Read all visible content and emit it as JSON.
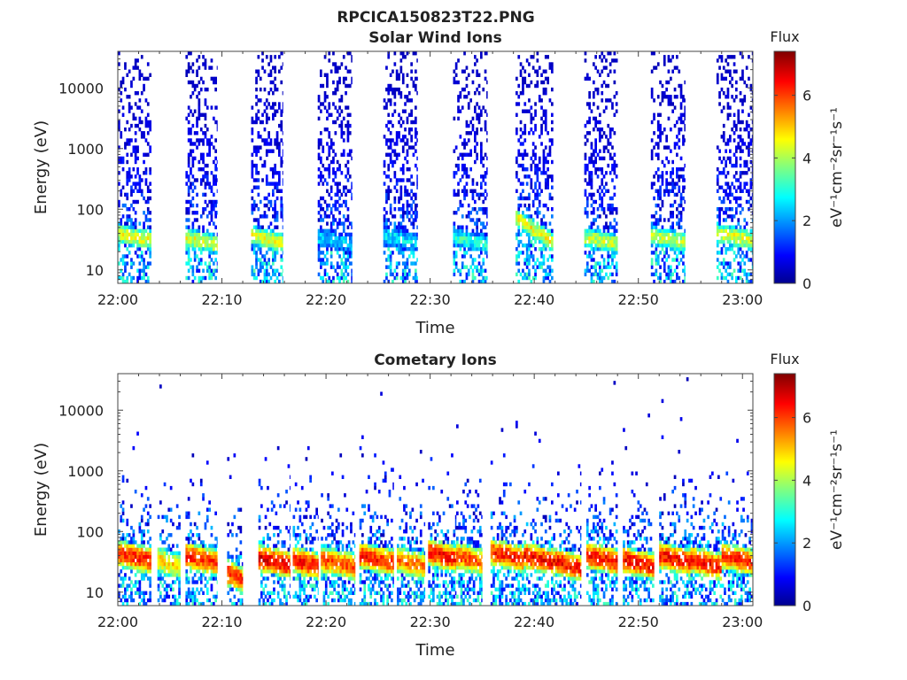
{
  "figure_title": "RPCICA150823T22.PNG",
  "chart_data": [
    {
      "type": "heatmap",
      "title": "Solar Wind Ions",
      "xlabel": "Time",
      "ylabel": "Energy (eV)",
      "x_ticks": [
        "22:00",
        "22:10",
        "22:20",
        "22:30",
        "22:40",
        "22:50",
        "23:00"
      ],
      "xlim_minutes": [
        0,
        61
      ],
      "y_scale": "log",
      "ylim": [
        6,
        40000
      ],
      "y_ticks": [
        10,
        100,
        1000,
        10000
      ],
      "y_tick_labels": [
        "10",
        "100",
        "1000",
        "10000"
      ],
      "colorbar": {
        "title": "Flux",
        "label": "eV⁻¹cm⁻²sr⁻¹s⁻¹",
        "range": [
          0,
          7.4
        ],
        "ticks": [
          0,
          2,
          4,
          6
        ],
        "colormap": "jet"
      },
      "bursts_minutes": [
        {
          "start": 0.0,
          "end": 3.2,
          "peak_energy_eV": 35,
          "peak_flux": 5.0
        },
        {
          "start": 6.5,
          "end": 9.5,
          "peak_energy_eV": 30,
          "peak_flux": 5.0
        },
        {
          "start": 12.8,
          "end": 15.8,
          "peak_energy_eV": 32,
          "peak_flux": 5.0
        },
        {
          "start": 19.2,
          "end": 22.5,
          "peak_energy_eV": 30,
          "peak_flux": 3.0
        },
        {
          "start": 25.5,
          "end": 28.8,
          "peak_energy_eV": 32,
          "peak_flux": 3.2
        },
        {
          "start": 32.2,
          "end": 35.5,
          "peak_energy_eV": 30,
          "peak_flux": 3.6
        },
        {
          "start": 38.2,
          "end": 41.8,
          "peak_energy_eV": 45,
          "peak_flux": 5.2
        },
        {
          "start": 44.8,
          "end": 48.0,
          "peak_energy_eV": 30,
          "peak_flux": 4.8
        },
        {
          "start": 51.2,
          "end": 54.5,
          "peak_energy_eV": 32,
          "peak_flux": 4.8
        },
        {
          "start": 57.5,
          "end": 61.0,
          "peak_energy_eV": 35,
          "peak_flux": 5.0
        }
      ]
    },
    {
      "type": "heatmap",
      "title": "Cometary Ions",
      "xlabel": "Time",
      "ylabel": "Energy (eV)",
      "x_ticks": [
        "22:00",
        "22:10",
        "22:20",
        "22:30",
        "22:40",
        "22:50",
        "23:00"
      ],
      "xlim_minutes": [
        0,
        61
      ],
      "y_scale": "log",
      "ylim": [
        6,
        40000
      ],
      "y_ticks": [
        10,
        100,
        1000,
        10000
      ],
      "y_tick_labels": [
        "10",
        "100",
        "1000",
        "10000"
      ],
      "colorbar": {
        "title": "Flux",
        "label": "eV⁻¹cm⁻²sr⁻¹s⁻¹",
        "range": [
          0,
          7.4
        ],
        "ticks": [
          0,
          2,
          4,
          6
        ],
        "colormap": "jet"
      },
      "bursts_minutes": [
        {
          "start": 0.0,
          "end": 3.2,
          "peak_energy_eV": 38,
          "peak_flux": 6.8
        },
        {
          "start": 3.8,
          "end": 6.0,
          "peak_energy_eV": 30,
          "peak_flux": 5.5
        },
        {
          "start": 6.5,
          "end": 9.5,
          "peak_energy_eV": 35,
          "peak_flux": 6.8
        },
        {
          "start": 10.5,
          "end": 12.0,
          "peak_energy_eV": 18,
          "peak_flux": 6.8
        },
        {
          "start": 13.5,
          "end": 16.5,
          "peak_energy_eV": 32,
          "peak_flux": 7.2
        },
        {
          "start": 16.8,
          "end": 19.2,
          "peak_energy_eV": 30,
          "peak_flux": 7.0
        },
        {
          "start": 19.5,
          "end": 22.8,
          "peak_energy_eV": 30,
          "peak_flux": 6.5
        },
        {
          "start": 23.2,
          "end": 26.5,
          "peak_energy_eV": 35,
          "peak_flux": 6.8
        },
        {
          "start": 26.8,
          "end": 29.5,
          "peak_energy_eV": 30,
          "peak_flux": 6.2
        },
        {
          "start": 29.8,
          "end": 32.5,
          "peak_energy_eV": 40,
          "peak_flux": 7.0
        },
        {
          "start": 32.5,
          "end": 35.0,
          "peak_energy_eV": 35,
          "peak_flux": 6.5
        },
        {
          "start": 35.8,
          "end": 39.0,
          "peak_energy_eV": 40,
          "peak_flux": 6.8
        },
        {
          "start": 39.0,
          "end": 42.0,
          "peak_energy_eV": 35,
          "peak_flux": 7.0
        },
        {
          "start": 42.0,
          "end": 44.5,
          "peak_energy_eV": 28,
          "peak_flux": 7.0
        },
        {
          "start": 45.0,
          "end": 48.0,
          "peak_energy_eV": 35,
          "peak_flux": 7.0
        },
        {
          "start": 48.5,
          "end": 51.5,
          "peak_energy_eV": 30,
          "peak_flux": 7.0
        },
        {
          "start": 52.0,
          "end": 55.0,
          "peak_energy_eV": 35,
          "peak_flux": 7.0
        },
        {
          "start": 55.0,
          "end": 58.0,
          "peak_energy_eV": 30,
          "peak_flux": 7.0
        },
        {
          "start": 58.0,
          "end": 61.0,
          "peak_energy_eV": 35,
          "peak_flux": 6.8
        }
      ]
    }
  ]
}
